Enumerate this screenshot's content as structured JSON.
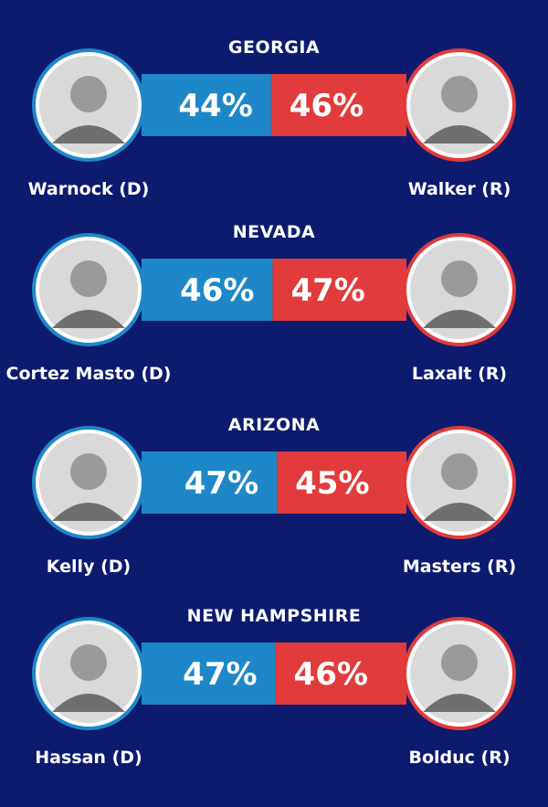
{
  "colors": {
    "background": "#0d1b6f",
    "democrat": "#1e87c8",
    "republican": "#e13b3b",
    "text": "#ffffff",
    "portrait_fill": "#d9d9d9"
  },
  "races": [
    {
      "state": "GEORGIA",
      "dem": {
        "name": "Warnock (D)",
        "pct_label": "44%",
        "photo_icon": "person-photo-icon"
      },
      "rep": {
        "name": "Walker (R)",
        "pct_label": "46%",
        "photo_icon": "person-photo-icon"
      }
    },
    {
      "state": "NEVADA",
      "dem": {
        "name": "Cortez Masto (D)",
        "pct_label": "46%",
        "photo_icon": "person-photo-icon"
      },
      "rep": {
        "name": "Laxalt (R)",
        "pct_label": "47%",
        "photo_icon": "person-photo-icon"
      }
    },
    {
      "state": "ARIZONA",
      "dem": {
        "name": "Kelly (D)",
        "pct_label": "47%",
        "photo_icon": "person-photo-icon"
      },
      "rep": {
        "name": "Masters (R)",
        "pct_label": "45%",
        "photo_icon": "person-photo-icon"
      }
    },
    {
      "state": "NEW HAMPSHIRE",
      "dem": {
        "name": "Hassan (D)",
        "pct_label": "47%",
        "photo_icon": "person-photo-icon"
      },
      "rep": {
        "name": "Bolduc (R)",
        "pct_label": "46%",
        "photo_icon": "person-photo-icon"
      }
    }
  ],
  "chart_data": {
    "type": "bar",
    "categories": [
      "GEORGIA",
      "NEVADA",
      "ARIZONA",
      "NEW HAMPSHIRE"
    ],
    "series": [
      {
        "name": "",
        "values": [
          44,
          46,
          47,
          47
        ]
      },
      {
        "name": "",
        "values": [
          46,
          47,
          45,
          46
        ]
      }
    ],
    "ylabel": "",
    "xlabel": "",
    "title": ""
  }
}
